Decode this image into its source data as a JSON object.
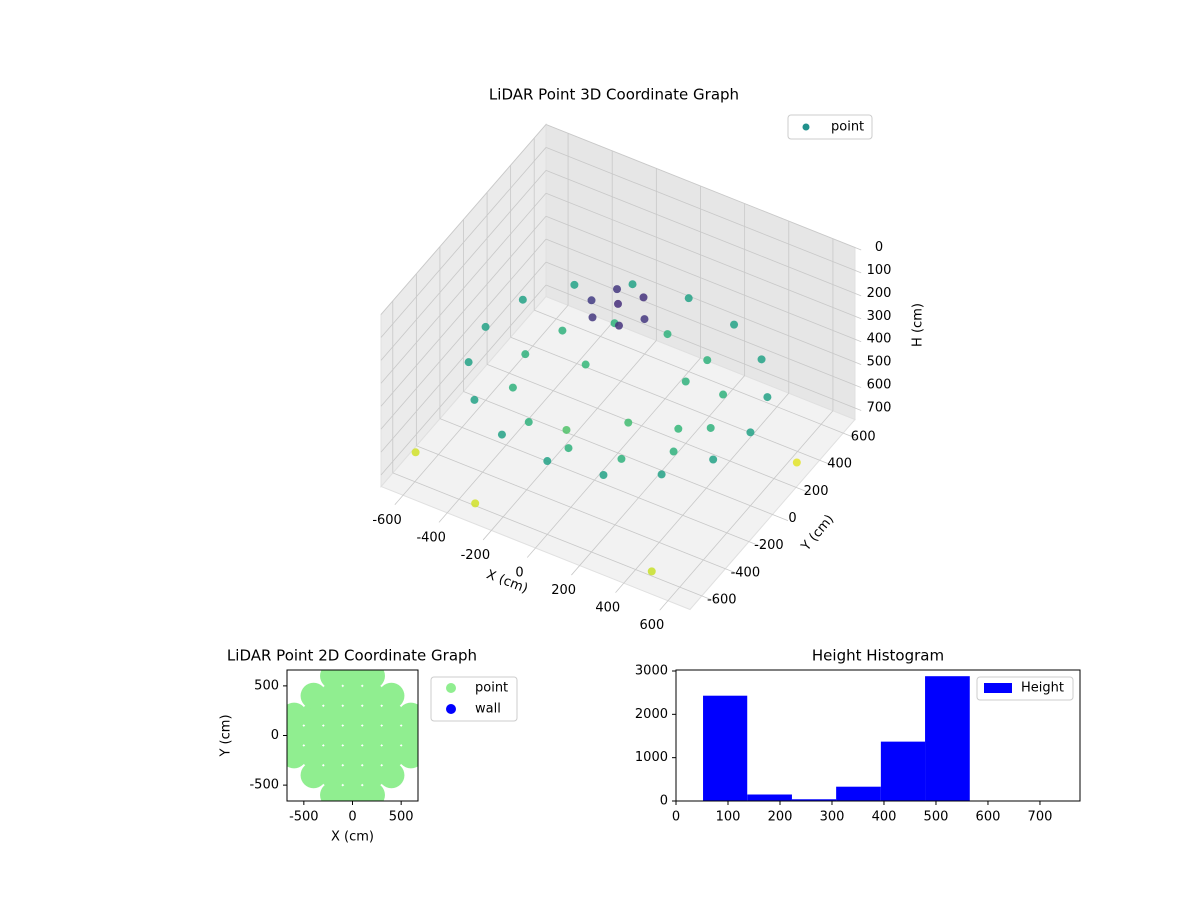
{
  "chart_data": [
    {
      "type": "scatter3d",
      "title": "LiDAR Point 3D Coordinate Graph",
      "xlabel": "X (cm)",
      "ylabel": "Y (cm)",
      "zlabel": "H (cm)",
      "xlim": [
        -700,
        700
      ],
      "ylim": [
        -700,
        700
      ],
      "zlim": [
        0,
        750
      ],
      "z_inverted": true,
      "xticks": [
        -600,
        -400,
        -200,
        0,
        200,
        400,
        600
      ],
      "yticks": [
        -600,
        -400,
        -200,
        0,
        200,
        400,
        600
      ],
      "zticks": [
        0,
        100,
        200,
        300,
        400,
        500,
        600,
        700
      ],
      "colormap": "viridis",
      "legend": "upper right",
      "grid": true,
      "series": [
        {
          "name": "point",
          "color": "#21918c",
          "x": [
            600,
            554,
            424,
            230,
            0,
            -230,
            -424,
            -554,
            -600,
            -554,
            -424,
            -230,
            0,
            230,
            424,
            554,
            420,
            364,
            210,
            0,
            -210,
            -364,
            -420,
            -364,
            -210,
            0,
            210,
            364,
            120,
            60,
            -60,
            -120,
            -60,
            60,
            0,
            -200,
            100,
            200,
            -100,
            300,
            -650,
            -300,
            650,
            500
          ],
          "y": [
            0,
            230,
            424,
            554,
            600,
            554,
            424,
            230,
            0,
            -230,
            -424,
            -554,
            -600,
            -554,
            -424,
            -230,
            0,
            210,
            364,
            420,
            364,
            210,
            0,
            -210,
            -364,
            -420,
            -364,
            -210,
            0,
            104,
            104,
            0,
            -104,
            -104,
            0,
            100,
            -100,
            200,
            -250,
            -50,
            -500,
            -650,
            300,
            -650
          ],
          "z": [
            430,
            430,
            430,
            430,
            430,
            430,
            430,
            430,
            430,
            430,
            430,
            430,
            430,
            430,
            430,
            430,
            480,
            480,
            480,
            480,
            480,
            480,
            480,
            480,
            480,
            480,
            480,
            480,
            120,
            110,
            120,
            130,
            120,
            110,
            100,
            500,
            520,
            480,
            540,
            500,
            700,
            700,
            720,
            690
          ]
        }
      ]
    },
    {
      "type": "scatter",
      "title": "LiDAR Point 2D Coordinate Graph",
      "xlabel": "X (cm)",
      "ylabel": "Y (cm)",
      "xlim": [
        -673,
        673
      ],
      "ylim": [
        -660,
        660
      ],
      "xticks": [
        -500,
        0,
        500
      ],
      "yticks": [
        -500,
        0,
        500
      ],
      "legend": "outside right",
      "series": [
        {
          "name": "point",
          "color": "#90ee90",
          "x": [
            -600,
            -400,
            -200,
            0,
            200,
            400,
            600,
            -600,
            -400,
            -200,
            0,
            200,
            400,
            600,
            -600,
            -400,
            -200,
            0,
            200,
            400,
            600,
            -400,
            -200,
            0,
            200,
            400,
            -400,
            -200,
            0,
            200,
            400,
            -200,
            0,
            200,
            -200,
            0,
            200
          ],
          "y": [
            0,
            0,
            0,
            0,
            0,
            0,
            0,
            200,
            200,
            200,
            200,
            200,
            200,
            200,
            -200,
            -200,
            -200,
            -200,
            -200,
            -200,
            -200,
            400,
            400,
            400,
            400,
            400,
            -400,
            -400,
            -400,
            -400,
            -400,
            600,
            600,
            600,
            -600,
            -600,
            -600
          ]
        },
        {
          "name": "wall",
          "color": "#0000ff",
          "x": [],
          "y": []
        }
      ]
    },
    {
      "type": "histogram",
      "title": "Height Histogram",
      "bins": [
        52,
        137,
        223,
        308,
        394,
        479,
        565
      ],
      "series": [
        {
          "name": "Height",
          "color": "#0000ff",
          "values": [
            2430,
            150,
            40,
            330,
            1370,
            2880
          ]
        }
      ],
      "xlim": [
        0,
        777
      ],
      "ylim": [
        0,
        3023
      ],
      "xticks": [
        0,
        100,
        200,
        300,
        400,
        500,
        600,
        700
      ],
      "yticks": [
        0,
        1000,
        2000,
        3000
      ],
      "legend": "upper right"
    }
  ]
}
